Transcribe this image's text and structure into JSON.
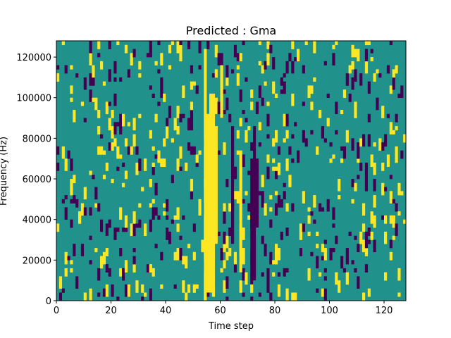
{
  "chart_data": {
    "type": "heatmap",
    "title": "Predicted : Gma",
    "xlabel": "Time step",
    "ylabel": "Frequency (Hz)",
    "xlim": [
      0,
      128
    ],
    "ylim": [
      0,
      128000
    ],
    "x_ticks": [
      0,
      20,
      40,
      60,
      80,
      100,
      120
    ],
    "y_ticks": [
      0,
      20000,
      40000,
      60000,
      80000,
      100000,
      120000
    ],
    "colors": {
      "background": "#21918c",
      "low": "#440154",
      "high": "#fde725"
    },
    "columns": 128,
    "rows": 64,
    "value_levels": [
      0,
      1,
      2
    ],
    "speckle_high_share": 0.5,
    "bands": [
      {
        "x": 54,
        "width": 1,
        "value": 2,
        "y_from": 0,
        "y_to": 124000
      },
      {
        "x": 55,
        "width": 1,
        "value": 2,
        "y_from": 4000,
        "y_to": 92000
      },
      {
        "x": 56,
        "width": 2,
        "value": 2,
        "y_from": 4000,
        "y_to": 102000
      },
      {
        "x": 58,
        "width": 1,
        "value": 2,
        "y_from": 28000,
        "y_to": 86000
      },
      {
        "x": 60,
        "width": 1,
        "value": 2,
        "y_from": 90000,
        "y_to": 116000
      },
      {
        "x": 64,
        "width": 1,
        "value": 0,
        "y_from": 28000,
        "y_to": 86000
      },
      {
        "x": 67,
        "width": 1,
        "value": 2,
        "y_from": 14000,
        "y_to": 74000
      },
      {
        "x": 71,
        "width": 1,
        "value": 0,
        "y_from": 8000,
        "y_to": 70000
      },
      {
        "x": 72,
        "width": 1,
        "value": 0,
        "y_from": 10000,
        "y_to": 86000
      },
      {
        "x": 73,
        "width": 1,
        "value": 0,
        "y_from": 36000,
        "y_to": 70000
      }
    ]
  }
}
